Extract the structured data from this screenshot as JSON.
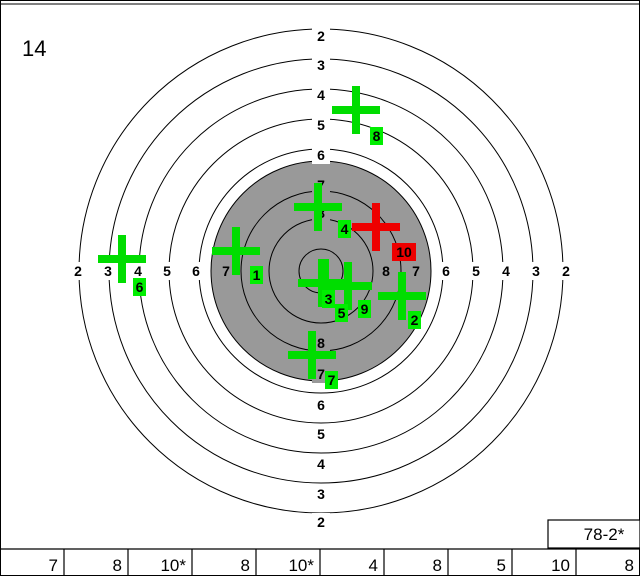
{
  "target": {
    "number": "14",
    "ring_labels_vertical_top": [
      "2",
      "3",
      "4",
      "5",
      "6",
      "7",
      "8"
    ],
    "ring_labels_vertical_bottom": [
      "8",
      "7",
      "6",
      "5",
      "4",
      "3",
      "2"
    ],
    "ring_labels_left": [
      "2",
      "3",
      "4",
      "5",
      "6",
      "7"
    ],
    "ring_labels_right": [
      "8",
      "7",
      "6",
      "5",
      "4",
      "3",
      "2"
    ],
    "inner_labels": [
      "8",
      "10",
      "9"
    ]
  },
  "shots": [
    {
      "num": "1",
      "color": "#00dd00",
      "label_color": "#00ee00"
    },
    {
      "num": "2",
      "color": "#00dd00",
      "label_color": "#00ee00"
    },
    {
      "num": "3",
      "color": "#00dd00",
      "label_color": "#00ee00"
    },
    {
      "num": "4",
      "color": "#00dd00",
      "label_color": "#00ee00"
    },
    {
      "num": "5",
      "color": "#00dd00",
      "label_color": "#00ee00"
    },
    {
      "num": "6",
      "color": "#00dd00",
      "label_color": "#00ee00"
    },
    {
      "num": "7",
      "color": "#00dd00",
      "label_color": "#00ee00"
    },
    {
      "num": "8",
      "color": "#00dd00",
      "label_color": "#00ee00"
    },
    {
      "num": "9",
      "color": "#00dd00",
      "label_color": "#00ee00"
    },
    {
      "num": "10",
      "color": "#ee0000",
      "label_color": "#ee0000"
    }
  ],
  "total": "78-2*",
  "bottom_scores": [
    "7",
    "8",
    "10*",
    "8",
    "10*",
    "4",
    "8",
    "5",
    "10",
    "8"
  ],
  "colors": {
    "black_area": "#999999",
    "ring_line": "#000000"
  }
}
